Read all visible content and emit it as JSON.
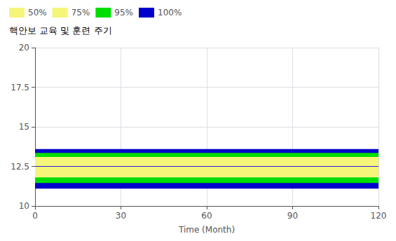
{
  "chart_data": {
    "type": "fan",
    "title": "핵안보 교육 및 훈련 주기",
    "xlabel": "Time (Month)",
    "x": [
      0,
      120
    ],
    "series": [
      {
        "name": "100%",
        "color": "#0000cc",
        "low": [
          11.1,
          11.1
        ],
        "high": [
          13.6,
          13.6
        ]
      },
      {
        "name": "95%",
        "color": "#00dd00",
        "low": [
          11.45,
          11.45
        ],
        "high": [
          13.35,
          13.35
        ]
      },
      {
        "name": "75%",
        "color": "#f5f57a",
        "low": [
          11.8,
          11.8
        ],
        "high": [
          13.1,
          13.1
        ]
      },
      {
        "name": "50%",
        "color": "#f5f57a",
        "low": [
          12.25,
          12.25
        ],
        "high": [
          12.75,
          12.75
        ]
      }
    ],
    "median": {
      "color": "#2222dd",
      "values": [
        12.5,
        12.5
      ]
    },
    "xlim": [
      0,
      120
    ],
    "ylim": [
      10,
      20
    ],
    "xticks": [
      0,
      30,
      60,
      90,
      120
    ],
    "yticks": [
      10,
      12.5,
      15,
      17.5,
      20
    ],
    "grid": true
  }
}
